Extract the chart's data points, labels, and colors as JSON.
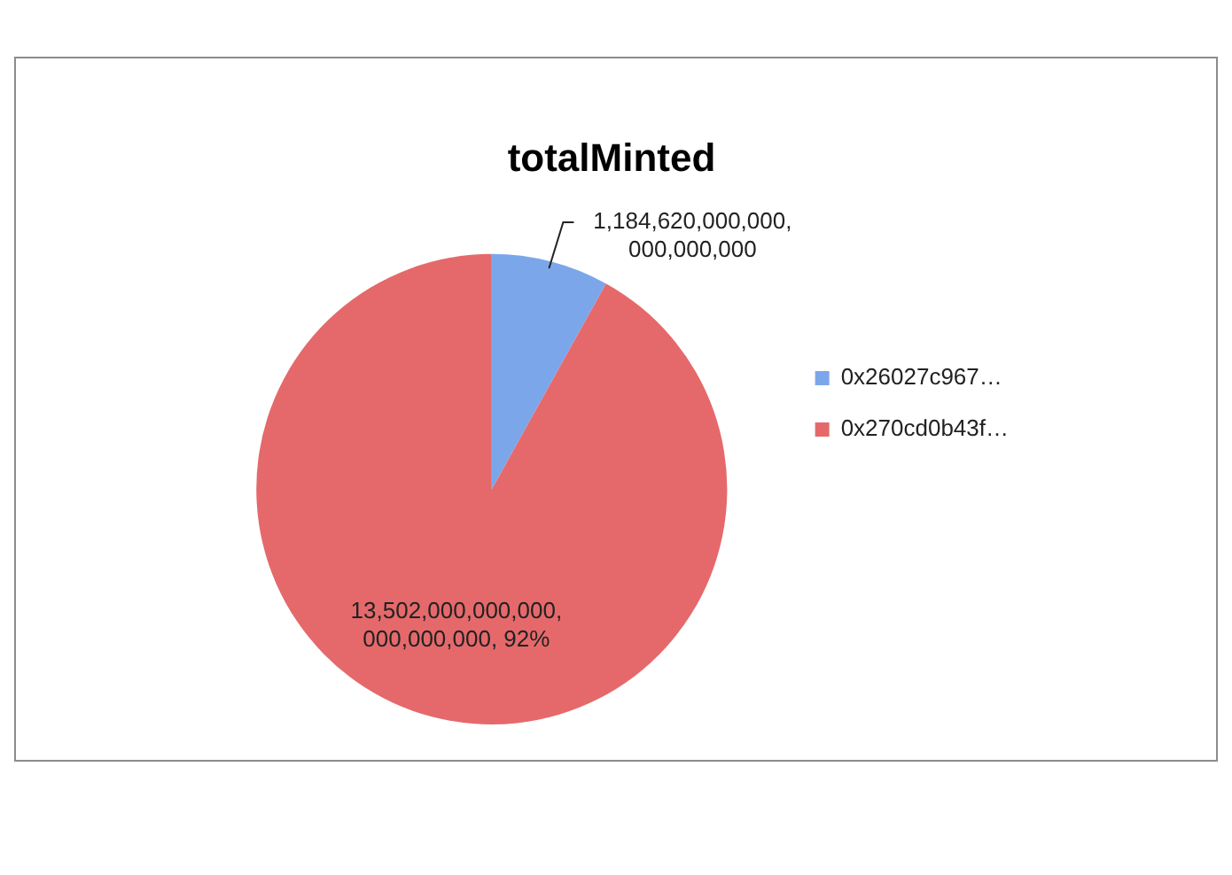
{
  "chart_data": {
    "type": "pie",
    "title": "totalMinted",
    "categories": [
      "0x26027c967…",
      "0x270cd0b43f…"
    ],
    "values": [
      1184620000000000000000,
      13502000000000000000000
    ],
    "colors": [
      "#7ba7ea",
      "#e5696b"
    ],
    "value_labels": [
      "1,184,620,000,000,000,000,000",
      "13,502,000,000,000,000,000,000, 92%"
    ],
    "legend": "right"
  }
}
